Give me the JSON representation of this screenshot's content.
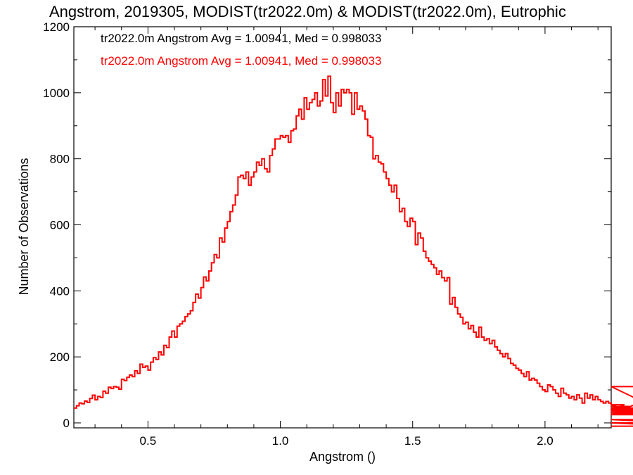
{
  "chart_data": {
    "type": "histogram-step",
    "title": "Angstrom, 2019305, MODIST(tr2022.0m) & MODIST(tr2022.0m), Eutrophic",
    "xlabel": "Angstrom ()",
    "ylabel": "Number of Observations",
    "xlim": [
      0.22,
      2.25
    ],
    "ylim": [
      -15,
      1200
    ],
    "xticks": [
      0.5,
      1.0,
      1.5,
      2.0
    ],
    "xtick_labels": [
      "0.5",
      "1.0",
      "1.5",
      "2.0"
    ],
    "yticks": [
      0,
      200,
      400,
      600,
      800,
      1000,
      1200
    ],
    "ytick_labels": [
      "0",
      "200",
      "400",
      "600",
      "800",
      "1000",
      "1200"
    ],
    "grid": false,
    "annotations": [
      {
        "text": "tr2022.0m Angstrom Avg = 1.00941, Med = 0.998033",
        "color": "#000000"
      },
      {
        "text": "tr2022.0m Angstrom Avg = 1.00941, Med = 0.998033",
        "color": "#ff0000"
      }
    ],
    "series": [
      {
        "color": "#ff0000",
        "bin_width": 0.01,
        "x_start": 0.22,
        "values": [
          45,
          52,
          60,
          58,
          66,
          62,
          74,
          84,
          70,
          80,
          77,
          96,
          90,
          108,
          104,
          110,
          108,
          102,
          132,
          128,
          138,
          145,
          140,
          158,
          150,
          178,
          168,
          172,
          160,
          184,
          198,
          192,
          215,
          206,
          235,
          228,
          260,
          278,
          260,
          293,
          300,
          308,
          322,
          330,
          340,
          365,
          390,
          378,
          410,
          442,
          430,
          460,
          485,
          510,
          500,
          560,
          548,
          590,
          610,
          640,
          660,
          690,
          745,
          750,
          740,
          760,
          720,
          745,
          760,
          790,
          780,
          800,
          770,
          760,
          810,
          830,
          860,
          860,
          870,
          865,
          870,
          850,
          885,
          890,
          930,
          950,
          920,
          985,
          950,
          970,
          980,
          1000,
          960,
          975,
          1040,
          990,
          1050,
          970,
          940,
          1000,
          960,
          1010,
          1000,
          1010,
          1000,
          935,
          1000,
          950,
          960,
          945,
          920,
          870,
          865,
          800,
          810,
          790,
          785,
          760,
          740,
          720,
          700,
          720,
          680,
          640,
          650,
          610,
          595,
          620,
          610,
          540,
          575,
          560,
          520,
          500,
          490,
          480,
          470,
          450,
          460,
          440,
          430,
          440,
          360,
          380,
          350,
          330,
          320,
          300,
          305,
          285,
          295,
          275,
          260,
          290,
          260,
          250,
          255,
          240,
          250,
          230,
          220,
          210,
          200,
          210,
          195,
          180,
          175,
          165,
          160,
          150,
          140,
          155,
          130,
          135,
          130,
          120,
          110,
          100,
          95,
          115,
          110,
          100,
          90,
          80,
          105,
          90,
          85,
          75,
          80,
          70,
          85,
          75,
          60,
          90,
          75,
          85,
          70,
          80,
          70,
          65,
          60,
          65,
          60,
          55,
          50,
          55,
          45,
          40,
          55,
          40,
          50,
          45,
          40,
          35,
          45,
          30,
          40,
          35,
          30,
          45,
          30,
          35,
          25,
          40,
          30,
          35,
          30,
          25,
          110,
          10,
          0,
          -10,
          -10,
          -10,
          -10,
          -10,
          -10,
          -10,
          -10
        ]
      }
    ]
  }
}
